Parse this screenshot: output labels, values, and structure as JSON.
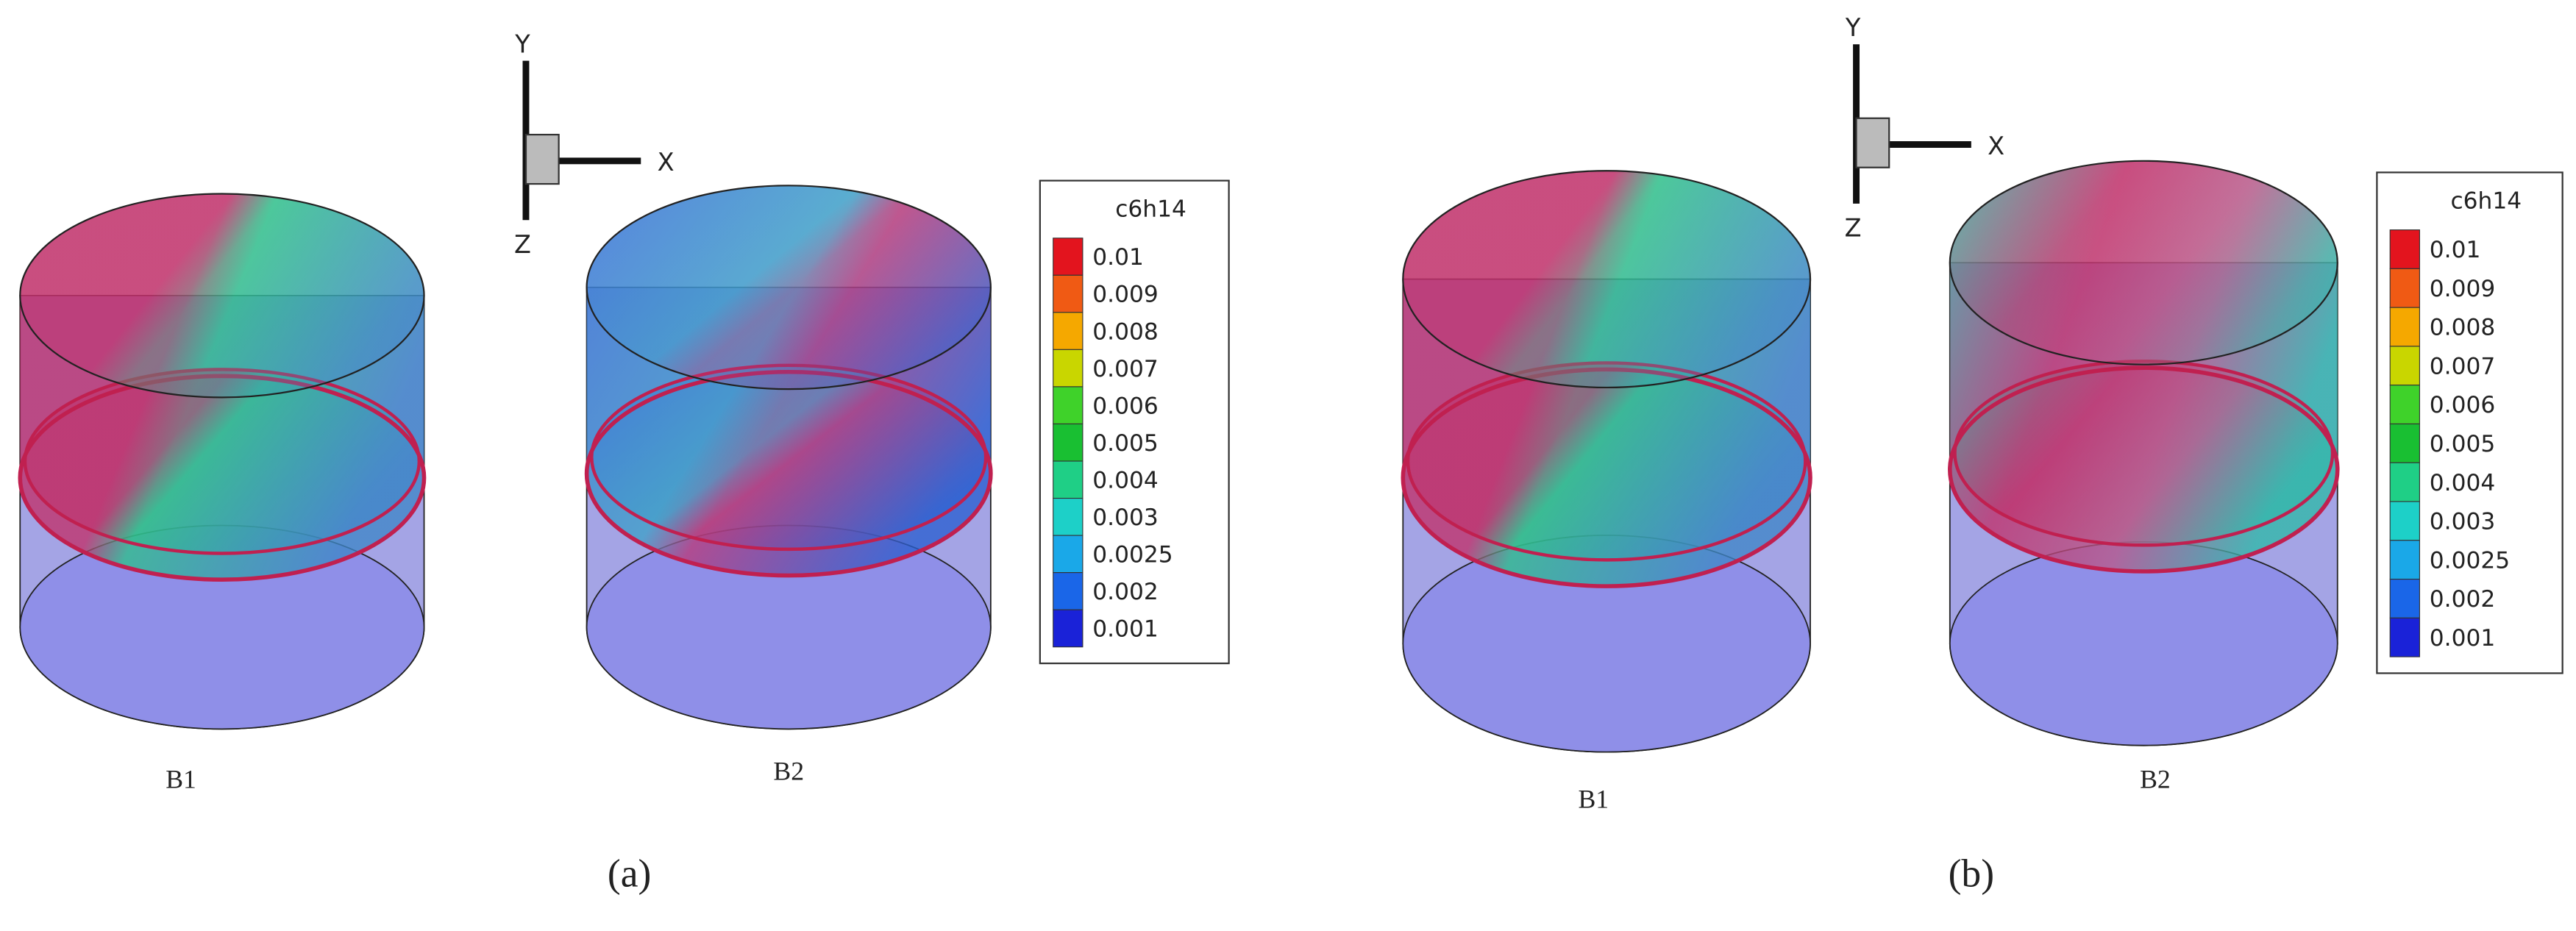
{
  "panels": [
    {
      "label": "(a)",
      "tanks": [
        {
          "label": "B1"
        },
        {
          "label": "B2"
        }
      ],
      "axes": {
        "x": "X",
        "y": "Y",
        "z": "Z"
      },
      "legend": {
        "title": "c6h14",
        "levels": [
          {
            "label": "0.01",
            "color": "#e3141e"
          },
          {
            "label": "0.009",
            "color": "#f05a14"
          },
          {
            "label": "0.008",
            "color": "#f5a800"
          },
          {
            "label": "0.007",
            "color": "#c9d600"
          },
          {
            "label": "0.006",
            "color": "#3fd22a"
          },
          {
            "label": "0.005",
            "color": "#19bf32"
          },
          {
            "label": "0.004",
            "color": "#1fcf86"
          },
          {
            "label": "0.003",
            "color": "#1dd0c8"
          },
          {
            "label": "0.0025",
            "color": "#1aa8e8"
          },
          {
            "label": "0.002",
            "color": "#1a66e8"
          },
          {
            "label": "0.001",
            "color": "#1a22d8"
          }
        ]
      }
    },
    {
      "label": "(b)",
      "tanks": [
        {
          "label": "B1"
        },
        {
          "label": "B2"
        }
      ],
      "axes": {
        "x": "X",
        "y": "Y",
        "z": "Z"
      },
      "legend": {
        "title": "c6h14",
        "levels": [
          {
            "label": "0.01",
            "color": "#e3141e"
          },
          {
            "label": "0.009",
            "color": "#f05a14"
          },
          {
            "label": "0.008",
            "color": "#f5a800"
          },
          {
            "label": "0.007",
            "color": "#c9d600"
          },
          {
            "label": "0.006",
            "color": "#3fd22a"
          },
          {
            "label": "0.005",
            "color": "#19bf32"
          },
          {
            "label": "0.004",
            "color": "#1fcf86"
          },
          {
            "label": "0.003",
            "color": "#1dd0c8"
          },
          {
            "label": "0.0025",
            "color": "#1aa8e8"
          },
          {
            "label": "0.002",
            "color": "#1a66e8"
          },
          {
            "label": "0.001",
            "color": "#1a22d8"
          }
        ]
      }
    }
  ]
}
